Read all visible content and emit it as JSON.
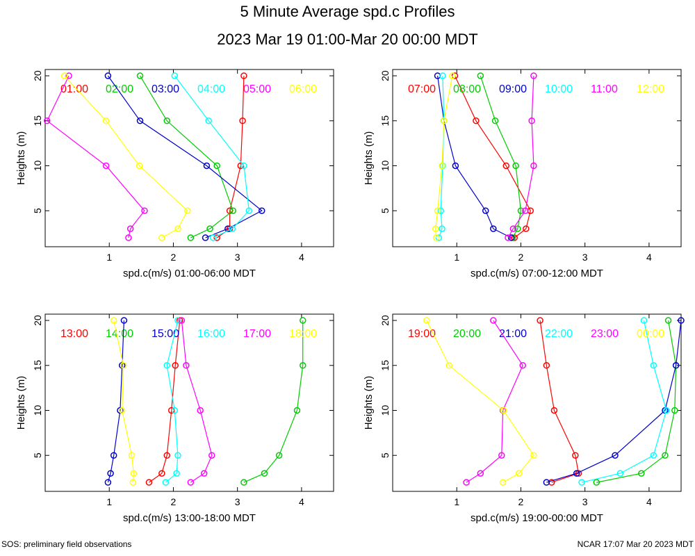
{
  "title": "5 Minute Average spd.c Profiles",
  "subtitle": "2023 Mar 19 01:00-Mar 20 00:00 MDT",
  "footer_left": "SOS: preliminary field observations",
  "footer_right": "NCAR 17:07 Mar 20 2023 MDT",
  "chart_data": [
    {
      "type": "line",
      "xlabel": "spd.c(m/s) 01:00-06:00 MDT",
      "ylabel": "Heights (m)",
      "xlim": [
        0,
        4.5
      ],
      "ylim": [
        1,
        20.7
      ],
      "xticks": [
        1,
        2,
        3,
        4
      ],
      "yticks": [
        5,
        10,
        15,
        20
      ],
      "heights": [
        2,
        3,
        5,
        10,
        15,
        20
      ],
      "series": [
        {
          "name": "01:00",
          "color": "#ff0000",
          "x": [
            2.68,
            2.88,
            2.88,
            3.05,
            3.08,
            3.1
          ]
        },
        {
          "name": "02:00",
          "color": "#00cc00",
          "x": [
            2.27,
            2.57,
            2.93,
            2.68,
            1.9,
            1.48
          ]
        },
        {
          "name": "03:00",
          "color": "#0000cc",
          "x": [
            2.5,
            2.85,
            3.38,
            2.52,
            1.48,
            0.98
          ]
        },
        {
          "name": "04:00",
          "color": "#00ffff",
          "x": [
            2.62,
            2.92,
            3.18,
            3.1,
            2.55,
            2.02
          ]
        },
        {
          "name": "05:00",
          "color": "#ff00ff",
          "x": [
            1.3,
            1.33,
            1.55,
            0.95,
            0.03,
            0.37
          ]
        },
        {
          "name": "06:00",
          "color": "#ffff00",
          "x": [
            1.82,
            2.07,
            2.22,
            1.47,
            0.95,
            0.3
          ]
        }
      ]
    },
    {
      "type": "line",
      "xlabel": "spd.c(m/s) 07:00-12:00 MDT",
      "ylabel": "Heights (m)",
      "xlim": [
        0,
        4.5
      ],
      "ylim": [
        1,
        20.7
      ],
      "xticks": [
        1,
        2,
        3,
        4
      ],
      "yticks": [
        5,
        10,
        15,
        20
      ],
      "heights": [
        2,
        3,
        5,
        10,
        15,
        20
      ],
      "series": [
        {
          "name": "07:00",
          "color": "#ff0000",
          "x": [
            1.9,
            2.08,
            2.15,
            1.77,
            1.3,
            0.97
          ]
        },
        {
          "name": "08:00",
          "color": "#00cc00",
          "x": [
            1.87,
            1.95,
            2.0,
            1.92,
            1.6,
            1.37
          ]
        },
        {
          "name": "09:00",
          "color": "#0000cc",
          "x": [
            1.85,
            1.57,
            1.45,
            0.98,
            0.8,
            0.7
          ]
        },
        {
          "name": "10:00",
          "color": "#00ffff",
          "x": [
            0.72,
            0.77,
            0.75,
            0.78,
            0.8,
            0.78
          ]
        },
        {
          "name": "11:00",
          "color": "#ff00ff",
          "x": [
            1.8,
            1.88,
            2.07,
            2.2,
            2.17,
            2.2
          ]
        },
        {
          "name": "12:00",
          "color": "#ffff00",
          "x": [
            0.68,
            0.67,
            0.7,
            0.77,
            0.8,
            0.93
          ]
        }
      ]
    },
    {
      "type": "line",
      "xlabel": "spd.c(m/s) 13:00-18:00 MDT",
      "ylabel": "Heights (m)",
      "xlim": [
        0,
        4.5
      ],
      "ylim": [
        1,
        20.7
      ],
      "xticks": [
        1,
        2,
        3,
        4
      ],
      "yticks": [
        5,
        10,
        15,
        20
      ],
      "heights": [
        2,
        3,
        5,
        10,
        15,
        20
      ],
      "series": [
        {
          "name": "13:00",
          "color": "#ff0000",
          "x": [
            1.62,
            1.82,
            1.9,
            1.97,
            2.03,
            2.1
          ]
        },
        {
          "name": "14:00",
          "color": "#00cc00",
          "x": [
            3.1,
            3.42,
            3.65,
            3.93,
            4.02,
            4.02
          ]
        },
        {
          "name": "15:00",
          "color": "#0000cc",
          "x": [
            0.98,
            1.02,
            1.07,
            1.17,
            1.2,
            1.23
          ]
        },
        {
          "name": "16:00",
          "color": "#00ffff",
          "x": [
            1.88,
            2.05,
            2.07,
            2.02,
            1.9,
            2.07
          ]
        },
        {
          "name": "17:00",
          "color": "#ff00ff",
          "x": [
            2.27,
            2.48,
            2.6,
            2.42,
            2.2,
            2.13
          ]
        },
        {
          "name": "18:00",
          "color": "#ffff00",
          "x": [
            1.37,
            1.38,
            1.35,
            1.2,
            1.22,
            1.07
          ]
        }
      ]
    },
    {
      "type": "line",
      "xlabel": "spd.c(m/s) 19:00-00:00 MDT",
      "ylabel": "Heights (m)",
      "xlim": [
        0,
        4.5
      ],
      "ylim": [
        1,
        20.7
      ],
      "xticks": [
        1,
        2,
        3,
        4
      ],
      "yticks": [
        5,
        10,
        15,
        20
      ],
      "heights": [
        2,
        3,
        5,
        10,
        15,
        20
      ],
      "series": [
        {
          "name": "19:00",
          "color": "#ff0000",
          "x": [
            2.48,
            2.9,
            2.85,
            2.52,
            2.4,
            2.3
          ]
        },
        {
          "name": "20:00",
          "color": "#00cc00",
          "x": [
            3.18,
            3.88,
            4.25,
            4.4,
            4.42,
            4.3
          ]
        },
        {
          "name": "21:00",
          "color": "#0000cc",
          "x": [
            2.4,
            2.87,
            3.47,
            4.25,
            4.42,
            4.5
          ]
        },
        {
          "name": "22:00",
          "color": "#00ffff",
          "x": [
            2.95,
            3.55,
            4.07,
            4.27,
            4.07,
            3.92
          ]
        },
        {
          "name": "23:00",
          "color": "#ff00ff",
          "x": [
            1.15,
            1.37,
            1.7,
            1.72,
            2.03,
            1.57
          ]
        },
        {
          "name": "00:00",
          "color": "#ffff00",
          "x": [
            1.72,
            1.97,
            2.2,
            1.73,
            0.88,
            0.53
          ]
        }
      ]
    }
  ]
}
